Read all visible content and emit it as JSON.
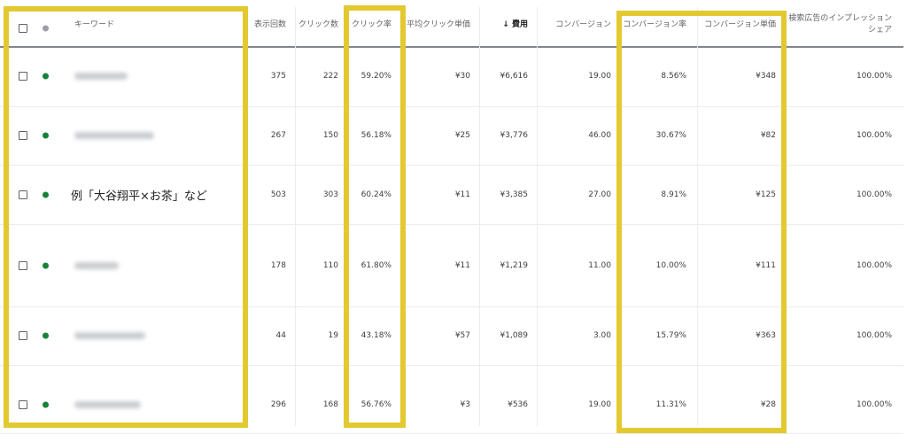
{
  "header": {
    "keyword": "キーワード",
    "impressions": "表示回数",
    "clicks": "クリック数",
    "ctr": "クリック率",
    "avg_cpc": "平均クリック単価",
    "sort_arrow": "↓",
    "cost": "費用",
    "conversions": "コンバージョン",
    "conv_rate": "コンバージョン率",
    "cost_per_conv": "コンバージョン単価",
    "impr_share_line1": "検索広告のインプレッション",
    "impr_share_line2": "シェア"
  },
  "colors": {
    "status_enabled": "#188038",
    "status_header": "#9aa0a6",
    "highlight": "#e3c92f"
  },
  "rows": [
    {
      "keyword": "",
      "keyword_blurred": true,
      "impressions": "375",
      "clicks": "222",
      "ctr": "59.20%",
      "avg_cpc": "¥30",
      "cost": "¥6,616",
      "conversions": "19.00",
      "conv_rate": "8.56%",
      "cost_per_conv": "¥348",
      "impr_share": "100.00%"
    },
    {
      "keyword": "",
      "keyword_blurred": true,
      "impressions": "267",
      "clicks": "150",
      "ctr": "56.18%",
      "avg_cpc": "¥25",
      "cost": "¥3,776",
      "conversions": "46.00",
      "conv_rate": "30.67%",
      "cost_per_conv": "¥82",
      "impr_share": "100.00%"
    },
    {
      "keyword": "例「大谷翔平×お茶」など",
      "keyword_blurred": false,
      "impressions": "503",
      "clicks": "303",
      "ctr": "60.24%",
      "avg_cpc": "¥11",
      "cost": "¥3,385",
      "conversions": "27.00",
      "conv_rate": "8.91%",
      "cost_per_conv": "¥125",
      "impr_share": "100.00%"
    },
    {
      "keyword": "",
      "keyword_blurred": true,
      "impressions": "178",
      "clicks": "110",
      "ctr": "61.80%",
      "avg_cpc": "¥11",
      "cost": "¥1,219",
      "conversions": "11.00",
      "conv_rate": "10.00%",
      "cost_per_conv": "¥111",
      "impr_share": "100.00%"
    },
    {
      "keyword": "",
      "keyword_blurred": true,
      "impressions": "44",
      "clicks": "19",
      "ctr": "43.18%",
      "avg_cpc": "¥57",
      "cost": "¥1,089",
      "conversions": "3.00",
      "conv_rate": "15.79%",
      "cost_per_conv": "¥363",
      "impr_share": "100.00%"
    },
    {
      "keyword": "",
      "keyword_blurred": true,
      "impressions": "296",
      "clicks": "168",
      "ctr": "56.76%",
      "avg_cpc": "¥3",
      "cost": "¥536",
      "conversions": "19.00",
      "conv_rate": "11.31%",
      "cost_per_conv": "¥28",
      "impr_share": "100.00%"
    }
  ]
}
